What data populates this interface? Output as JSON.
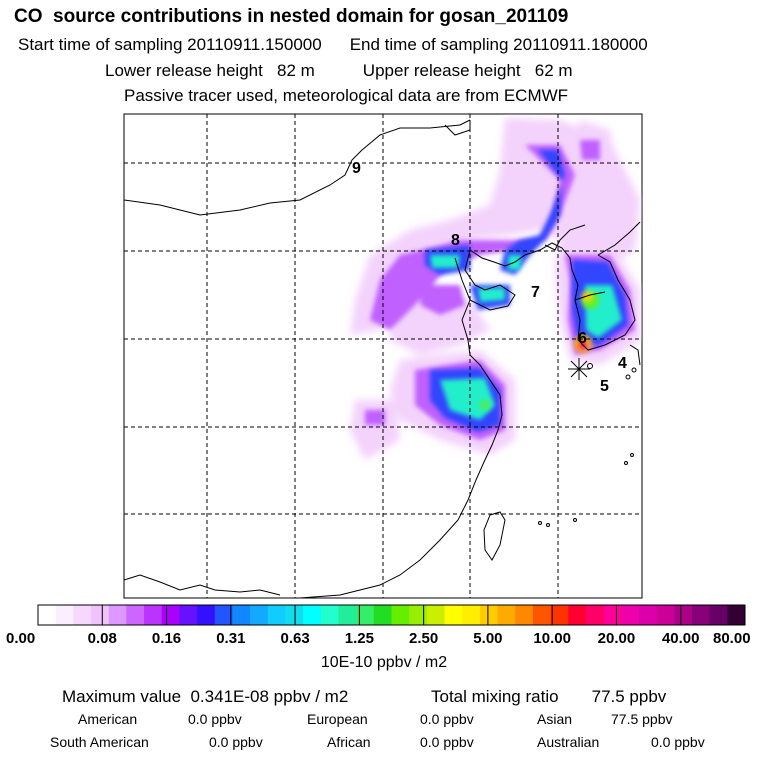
{
  "header": {
    "title": "CO  source contributions in nested domain for gosan_201109",
    "start_label": "Start time of sampling 20110911.150000",
    "end_label": "End time of sampling 20110911.180000",
    "lower_label": "Lower release height   82 m",
    "upper_label": "Upper release height   62 m",
    "tracer_label": "Passive tracer used, meteorological data are from ECMWF"
  },
  "chart_data": {
    "type": "heatmap",
    "title": "CO  source contributions in nested domain for gosan_201109",
    "map_labels": [
      "9",
      "8",
      "7",
      "6",
      "4",
      "5"
    ],
    "colorbar": {
      "unit": "10E-10 ppbv / m2",
      "tick_labels": [
        "0.00",
        "0.08",
        "0.16",
        "0.31",
        "0.63",
        "1.25",
        "2.50",
        "5.00",
        "10.00",
        "20.00",
        "40.00",
        "80.00"
      ],
      "colors": [
        "#ffffff",
        "#fbeefe",
        "#f5d8fc",
        "#efc4fa",
        "#dd99ff",
        "#cc66ff",
        "#bb33ff",
        "#aa00ff",
        "#6611ff",
        "#3311ff",
        "#2255ff",
        "#1188ff",
        "#11aaff",
        "#11ccff",
        "#11ddee",
        "#00ffff",
        "#22ffcc",
        "#22ee99",
        "#33ee66",
        "#22dd22",
        "#66ee00",
        "#99ee00",
        "#ccee00",
        "#ffff00",
        "#ffee00",
        "#ffcc00",
        "#ffaa00",
        "#ff8800",
        "#ff5500",
        "#ff3300",
        "#ff0033",
        "#ff0066",
        "#ff0099",
        "#ee00aa",
        "#dd00aa",
        "#cc0099",
        "#aa0088",
        "#880077",
        "#660066",
        "#330033"
      ]
    }
  },
  "summary": {
    "max_label": "Maximum value  0.341E-08 ppbv / m2",
    "total_label": "Total mixing ratio       77.5 ppbv",
    "american_label": "American",
    "american_value": "0.0 ppbv",
    "european_label": "European",
    "european_value": "0.0 ppbv",
    "asian_label": "Asian",
    "asian_value": "77.5 ppbv",
    "south_american_label": "South American",
    "south_american_value": "0.0 ppbv",
    "african_label": "African",
    "african_value": "0.0 ppbv",
    "australian_label": "Australian",
    "australian_value": "0.0 ppbv"
  }
}
